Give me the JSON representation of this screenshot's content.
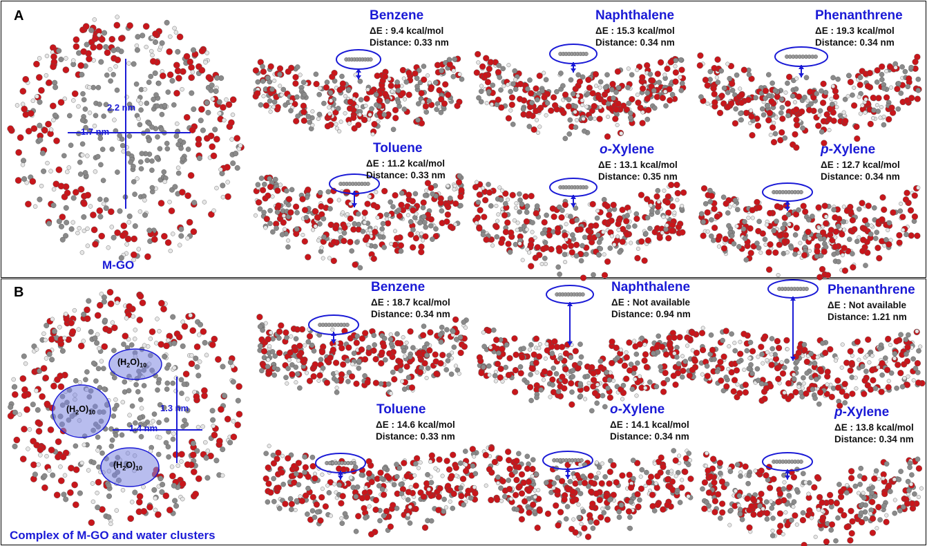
{
  "colors": {
    "accent": "#1a1ad6",
    "oxygen": "#c8161b",
    "carbon": "#8a8a8a",
    "hydrogen": "#e6e6e6",
    "water_cluster": "#7d86e0"
  },
  "panelA": {
    "label": "A",
    "caption": "M-GO",
    "measure_v": "2.2 nm",
    "measure_h": "1.7 nm",
    "molecules": [
      {
        "name_pre": "",
        "name_main": "Benzene",
        "energy": "9.4 kcal/mol",
        "distance": "Distance: 0.33 nm"
      },
      {
        "name_pre": "",
        "name_main": "Naphthalene",
        "energy": "15.3 kcal/mol",
        "distance": "Distance: 0.34 nm"
      },
      {
        "name_pre": "",
        "name_main": "Phenanthrene",
        "energy": "19.3 kcal/mol",
        "distance": "Distance: 0.34 nm"
      },
      {
        "name_pre": "",
        "name_main": "Toluene",
        "energy": "11.2 kcal/mol",
        "distance": "Distance: 0.33 nm"
      },
      {
        "name_pre": "o",
        "name_main": "-Xylene",
        "energy": "13.1 kcal/mol",
        "distance": "Distance: 0.35 nm"
      },
      {
        "name_pre": "p",
        "name_main": "-Xylene",
        "energy": "12.7 kcal/mol",
        "distance": "Distance: 0.34 nm"
      }
    ]
  },
  "panelB": {
    "label": "B",
    "caption": "Complex of M-GO and water clusters",
    "measure_v": "1.3 nm",
    "measure_h": "1.4 nm",
    "water_cluster": {
      "base": "(H",
      "sub1": "2",
      "mid": "O)",
      "sub2": "10"
    },
    "molecules": [
      {
        "name_pre": "",
        "name_main": "Benzene",
        "energy": "18.7 kcal/mol",
        "distance": "Distance: 0.34 nm"
      },
      {
        "name_pre": "",
        "name_main": "Naphthalene",
        "energy": " Not available",
        "distance": "Distance: 0.94 nm"
      },
      {
        "name_pre": "",
        "name_main": "Phenanthrene",
        "energy": " Not available",
        "distance": "Distance: 1.21 nm"
      },
      {
        "name_pre": "",
        "name_main": "Toluene",
        "energy": "14.6 kcal/mol",
        "distance": "Distance: 0.33 nm"
      },
      {
        "name_pre": "o",
        "name_main": "-Xylene",
        "energy": "14.1 kcal/mol",
        "distance": "Distance: 0.34 nm"
      },
      {
        "name_pre": "p",
        "name_main": "-Xylene",
        "energy": "13.8 kcal/mol",
        "distance": "Distance: 0.34 nm"
      }
    ]
  },
  "delta_e_symbol": "ΔE",
  "delta_e_sep": " :"
}
